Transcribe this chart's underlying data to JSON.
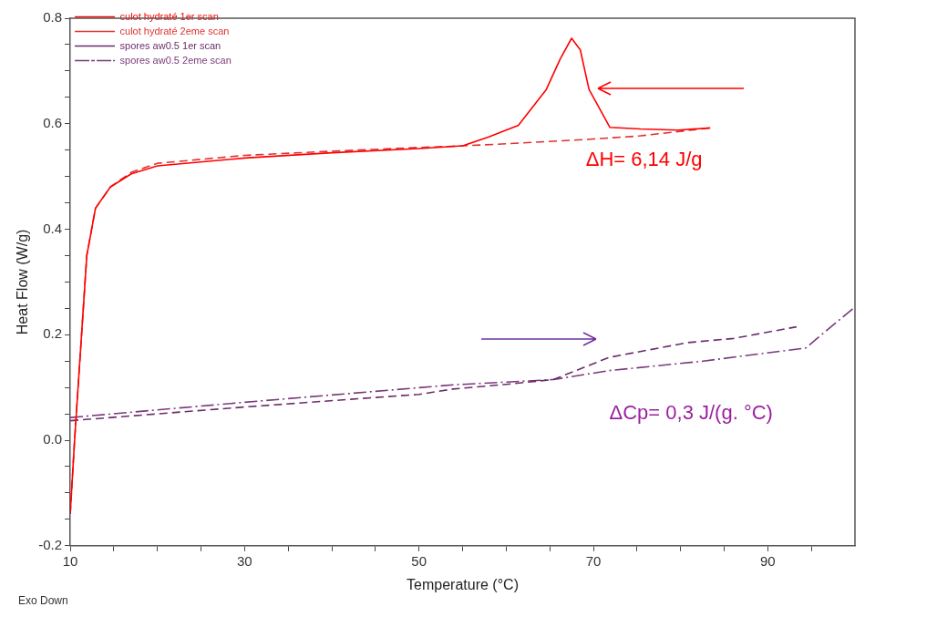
{
  "chart_data": {
    "type": "line",
    "xlabel": "Temperature (°C)",
    "ylabel": "Heat Flow (W/g)",
    "xlim": [
      10,
      100
    ],
    "ylim": [
      -0.2,
      0.8
    ],
    "xticks": [
      10,
      {
        "value": 15,
        "label": null
      },
      {
        "value": 20,
        "label": null
      },
      {
        "value": 25,
        "label": null
      },
      30,
      {
        "value": 35,
        "label": null
      },
      {
        "value": 40,
        "label": null
      },
      {
        "value": 45,
        "label": null
      },
      50,
      {
        "value": 55,
        "label": null
      },
      {
        "value": 60,
        "label": null
      },
      {
        "value": 65,
        "label": null
      },
      70,
      {
        "value": 75,
        "label": null
      },
      {
        "value": 80,
        "label": null
      },
      {
        "value": 85,
        "label": null
      },
      90,
      {
        "value": 95,
        "label": null
      }
    ],
    "yticks": [
      -0.2,
      {
        "value": -0.15,
        "label": null
      },
      {
        "value": -0.1,
        "label": null
      },
      {
        "value": -0.05,
        "label": null
      },
      {
        "value": 0,
        "label": "0.0"
      },
      {
        "value": 0.05,
        "label": null
      },
      {
        "value": 0.1,
        "label": null
      },
      {
        "value": 0.15,
        "label": null
      },
      0.2,
      {
        "value": 0.25,
        "label": null
      },
      {
        "value": 0.3,
        "label": null
      },
      {
        "value": 0.35,
        "label": null
      },
      0.4,
      {
        "value": 0.45,
        "label": null
      },
      {
        "value": 0.5,
        "label": null
      },
      {
        "value": 0.55,
        "label": null
      },
      0.6,
      {
        "value": 0.65,
        "label": null
      },
      {
        "value": 0.7,
        "label": null
      },
      {
        "value": 0.75,
        "label": null
      },
      0.8
    ],
    "legend": "top left",
    "marker": "none",
    "series": [
      {
        "name": "culot hydraté 1er scan",
        "color": "#ff0000",
        "line_style": "solid",
        "x": [
          10,
          10.5,
          11.5,
          11.9,
          12.9,
          14.6,
          17,
          20,
          30,
          40,
          50,
          55,
          58,
          61.4,
          64.6,
          66.2,
          67.5,
          68.5,
          69.5,
          71.9,
          75.4,
          79.7,
          83.4
        ],
        "values": [
          -0.14,
          0,
          0.25,
          0.35,
          0.44,
          0.48,
          0.505,
          0.52,
          0.535,
          0.545,
          0.553,
          0.558,
          0.575,
          0.597,
          0.665,
          0.723,
          0.762,
          0.74,
          0.665,
          0.593,
          0.59,
          0.588,
          0.592
        ]
      },
      {
        "name": "culot hydraté 2eme scan",
        "color": "#e03030",
        "line_style": "dashed",
        "x": [
          10,
          10.5,
          11.5,
          11.9,
          12.9,
          14.6,
          17,
          20,
          30,
          40,
          50,
          55,
          60,
          70,
          75.4,
          83.4
        ],
        "values": [
          -0.14,
          0,
          0.25,
          0.35,
          0.44,
          0.48,
          0.508,
          0.525,
          0.54,
          0.548,
          0.555,
          0.558,
          0.562,
          0.571,
          0.577,
          0.592
        ]
      },
      {
        "name": "spores aw0.5 1er scan",
        "color": "#6b2c6b",
        "line_style": "dashed",
        "x": [
          10,
          30,
          50,
          53.9,
          60,
          65.4,
          71.8,
          80.8,
          86.1,
          93.3
        ],
        "values": [
          0.037,
          0.063,
          0.087,
          0.097,
          0.106,
          0.115,
          0.157,
          0.185,
          0.193,
          0.215
        ]
      },
      {
        "name": "spores aw0.5 2eme scan",
        "color": "#7a3a7a",
        "line_style": "dashdot",
        "x": [
          10,
          30,
          53.9,
          65.4,
          71.8,
          82.6,
          94.4,
          95.8,
          99.8
        ],
        "values": [
          0.043,
          0.072,
          0.105,
          0.115,
          0.132,
          0.15,
          0.175,
          0.195,
          0.25
        ]
      }
    ],
    "annotations": [
      "ΔH= 6,14 J/g",
      "ΔCp= 0,3 J/(g. °C)",
      "Exo Down"
    ]
  }
}
